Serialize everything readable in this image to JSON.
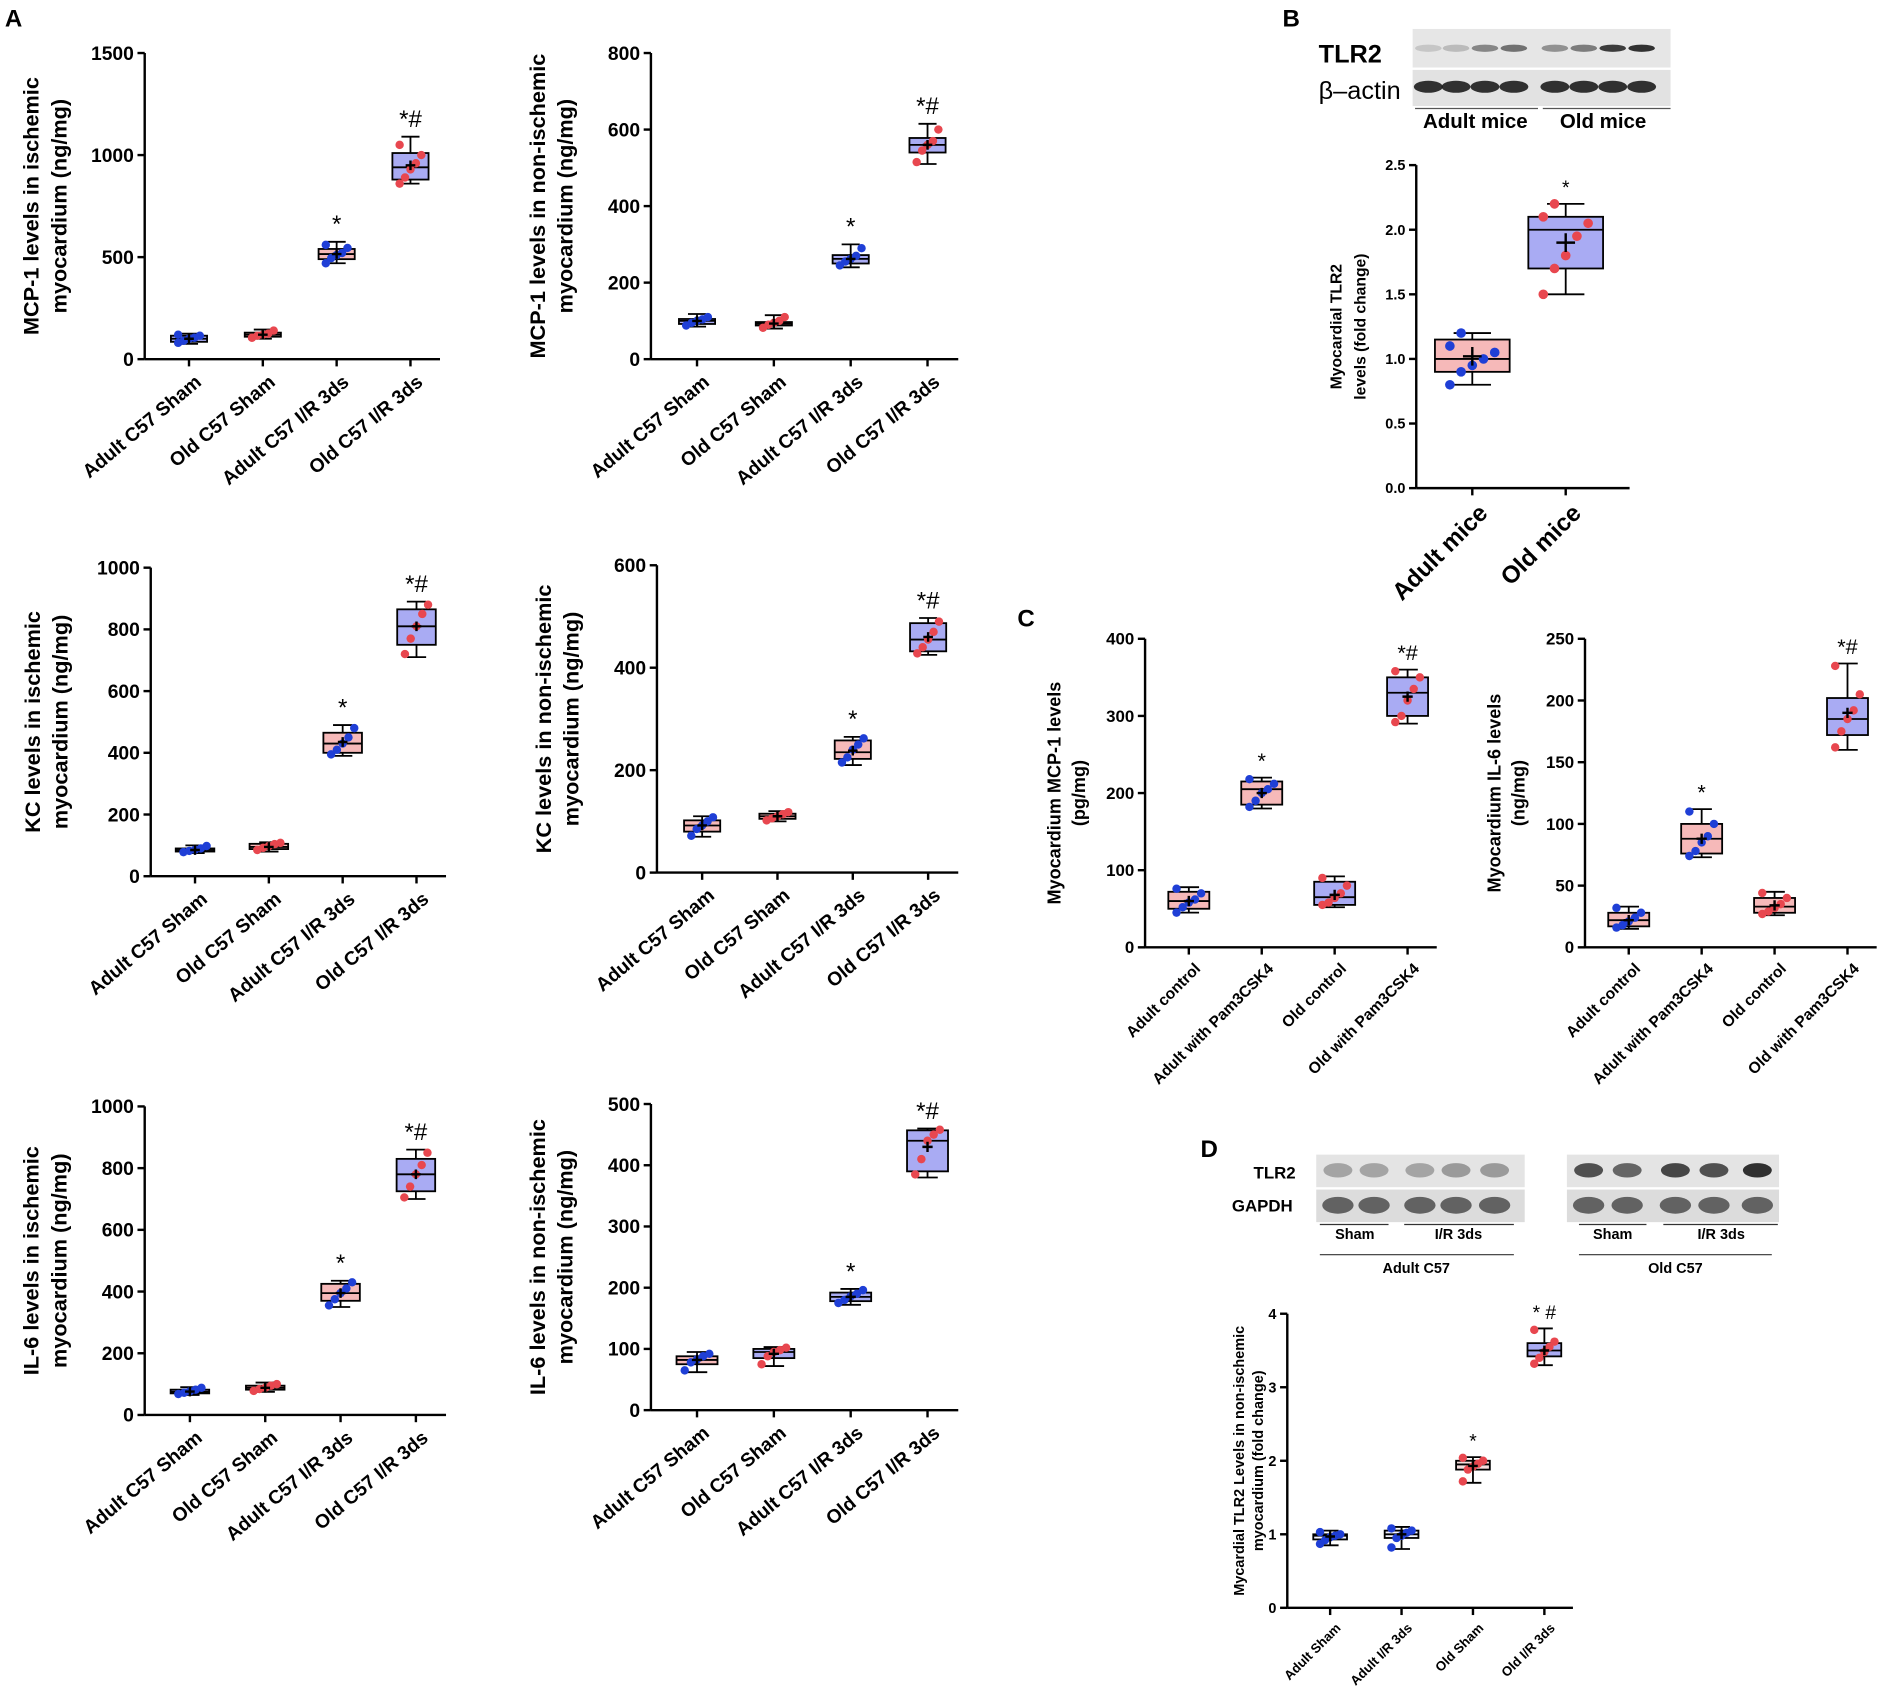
{
  "panels": [
    "A",
    "B",
    "C",
    "D"
  ],
  "blots": [
    {
      "rows": [
        "TLR2",
        "β–actin"
      ],
      "groups": [
        "Adult mice",
        "Old mice"
      ]
    },
    {
      "rows": [
        "TLR2",
        "GAPDH"
      ],
      "lanes": [
        "Sham",
        "I/R 3ds",
        "Sham",
        "I/R 3ds"
      ],
      "groups": [
        "Adult C57",
        "Old C57"
      ]
    }
  ],
  "chart_data": [
    {
      "type": "box",
      "ylabel": [
        "MCP-1 levels in ischemic",
        "myocardium (ng/mg)"
      ],
      "categories": [
        "Adult C57 Sham",
        "Old C57 Sham",
        "Adult C57 I/R 3ds",
        "Old C57 I/R 3ds"
      ],
      "ylim": [
        0,
        1500
      ],
      "yticks": [
        0,
        500,
        1000,
        1500
      ],
      "boxes": [
        {
          "min": 75,
          "q1": 85,
          "median": 100,
          "q3": 115,
          "max": 125,
          "mean": 100,
          "fill": "#a9abf3",
          "point_color": "#1f3fd6",
          "points": [
            80,
            90,
            100,
            105,
            115,
            120
          ]
        },
        {
          "min": 100,
          "q1": 110,
          "median": 120,
          "q3": 130,
          "max": 145,
          "mean": 120,
          "fill": "#f6b9b9",
          "point_color": "#e8474f",
          "points": [
            105,
            115,
            120,
            125,
            140
          ]
        },
        {
          "min": 470,
          "q1": 490,
          "median": 515,
          "q3": 540,
          "max": 575,
          "mean": 515,
          "fill": "#f6b9b9",
          "point_color": "#1f3fd6",
          "points": [
            470,
            495,
            510,
            520,
            545,
            560
          ],
          "annotation": "*"
        },
        {
          "min": 860,
          "q1": 880,
          "median": 940,
          "q3": 1010,
          "max": 1090,
          "mean": 950,
          "fill": "#a9abf3",
          "point_color": "#e8474f",
          "points": [
            860,
            890,
            930,
            960,
            1000,
            1050
          ],
          "annotation": "*#"
        }
      ]
    },
    {
      "type": "box",
      "ylabel": [
        "MCP-1 levels in non-ischemic",
        "myocardium (ng/mg)"
      ],
      "categories": [
        "Adult C57 Sham",
        "Old C57 Sham",
        "Adult C57 I/R 3ds",
        "Old C57 I/R 3ds"
      ],
      "ylim": [
        0,
        800
      ],
      "yticks": [
        0,
        200,
        400,
        600,
        800
      ],
      "boxes": [
        {
          "min": 85,
          "q1": 92,
          "median": 100,
          "q3": 105,
          "max": 118,
          "mean": 100,
          "fill": "#a9abf3",
          "point_color": "#1f3fd6",
          "points": [
            88,
            95,
            100,
            104,
            110
          ]
        },
        {
          "min": 80,
          "q1": 88,
          "median": 93,
          "q3": 97,
          "max": 115,
          "mean": 93,
          "fill": "#f6b9b9",
          "point_color": "#e8474f",
          "points": [
            82,
            90,
            95,
            100,
            110
          ]
        },
        {
          "min": 240,
          "q1": 250,
          "median": 262,
          "q3": 272,
          "max": 300,
          "mean": 262,
          "fill": "#a9abf3",
          "point_color": "#1f3fd6",
          "points": [
            245,
            255,
            262,
            270,
            290
          ],
          "annotation": "*"
        },
        {
          "min": 510,
          "q1": 540,
          "median": 560,
          "q3": 578,
          "max": 615,
          "mean": 560,
          "fill": "#a9abf3",
          "point_color": "#e8474f",
          "points": [
            515,
            545,
            560,
            570,
            600
          ],
          "annotation": "*#"
        }
      ]
    },
    {
      "type": "box",
      "ylabel": [
        "KC levels in ischemic",
        "myocardium (ng/mg)"
      ],
      "categories": [
        "Adult C57 Sham",
        "Old C57 Sham",
        "Adult C57 I/R 3ds",
        "Old C57 I/R 3ds"
      ],
      "ylim": [
        0,
        1000
      ],
      "yticks": [
        0,
        200,
        400,
        600,
        800,
        1000
      ],
      "boxes": [
        {
          "min": 75,
          "q1": 80,
          "median": 85,
          "q3": 90,
          "max": 100,
          "mean": 85,
          "fill": "#a9abf3",
          "point_color": "#1f3fd6",
          "points": [
            78,
            82,
            86,
            90,
            98
          ]
        },
        {
          "min": 80,
          "q1": 88,
          "median": 95,
          "q3": 105,
          "max": 110,
          "mean": 95,
          "fill": "#f6b9b9",
          "point_color": "#e8474f",
          "points": [
            85,
            92,
            98,
            104,
            108
          ]
        },
        {
          "min": 390,
          "q1": 400,
          "median": 430,
          "q3": 465,
          "max": 490,
          "mean": 435,
          "fill": "#f6b9b9",
          "point_color": "#1f3fd6",
          "points": [
            395,
            410,
            430,
            450,
            480
          ],
          "annotation": "*"
        },
        {
          "min": 710,
          "q1": 750,
          "median": 810,
          "q3": 865,
          "max": 890,
          "mean": 810,
          "fill": "#a9abf3",
          "point_color": "#e8474f",
          "points": [
            720,
            770,
            810,
            850,
            880
          ],
          "annotation": "*#"
        }
      ]
    },
    {
      "type": "box",
      "ylabel": [
        "KC levels in non-ischemic",
        "myocardium (ng/mg)"
      ],
      "categories": [
        "Adult C57 Sham",
        "Old C57 Sham",
        "Adult C57 I/R 3ds",
        "Old C57 I/R 3ds"
      ],
      "ylim": [
        0,
        600
      ],
      "yticks": [
        0,
        200,
        400,
        600
      ],
      "boxes": [
        {
          "min": 70,
          "q1": 80,
          "median": 92,
          "q3": 102,
          "max": 110,
          "mean": 92,
          "fill": "#f6b9b9",
          "point_color": "#1f3fd6",
          "points": [
            72,
            85,
            92,
            100,
            108
          ]
        },
        {
          "min": 100,
          "q1": 105,
          "median": 110,
          "q3": 115,
          "max": 120,
          "mean": 110,
          "fill": "#f6b9b9",
          "point_color": "#e8474f",
          "points": [
            102,
            106,
            110,
            114,
            118
          ]
        },
        {
          "min": 210,
          "q1": 222,
          "median": 235,
          "q3": 258,
          "max": 265,
          "mean": 238,
          "fill": "#f6b9b9",
          "point_color": "#1f3fd6",
          "points": [
            215,
            225,
            240,
            250,
            262
          ],
          "annotation": "*"
        },
        {
          "min": 425,
          "q1": 432,
          "median": 455,
          "q3": 487,
          "max": 497,
          "mean": 460,
          "fill": "#a9abf3",
          "point_color": "#e8474f",
          "points": [
            428,
            440,
            455,
            470,
            490
          ],
          "annotation": "*#"
        }
      ]
    },
    {
      "type": "box",
      "ylabel": [
        "IL-6 levels in ischemic",
        "myocardium (ng/mg)"
      ],
      "categories": [
        "Adult C57 Sham",
        "Old C57 Sham",
        "Adult C57 I/R 3ds",
        "Old C57 I/R 3ds"
      ],
      "ylim": [
        0,
        1000
      ],
      "yticks": [
        0,
        200,
        400,
        600,
        800,
        1000
      ],
      "boxes": [
        {
          "min": 65,
          "q1": 70,
          "median": 75,
          "q3": 82,
          "max": 90,
          "mean": 76,
          "fill": "#a9abf3",
          "point_color": "#1f3fd6",
          "points": [
            68,
            72,
            77,
            82,
            88
          ]
        },
        {
          "min": 75,
          "q1": 82,
          "median": 88,
          "q3": 95,
          "max": 105,
          "mean": 88,
          "fill": "#f6b9b9",
          "point_color": "#e8474f",
          "points": [
            78,
            84,
            88,
            95,
            100
          ]
        },
        {
          "min": 350,
          "q1": 370,
          "median": 395,
          "q3": 425,
          "max": 435,
          "mean": 395,
          "fill": "#f6b9b9",
          "point_color": "#1f3fd6",
          "points": [
            355,
            375,
            395,
            410,
            430
          ],
          "annotation": "*"
        },
        {
          "min": 700,
          "q1": 725,
          "median": 780,
          "q3": 830,
          "max": 860,
          "mean": 780,
          "fill": "#a9abf3",
          "point_color": "#e8474f",
          "points": [
            705,
            740,
            780,
            810,
            850
          ],
          "annotation": "*#"
        }
      ]
    },
    {
      "type": "box",
      "ylabel": [
        "IL-6 levels in non-ischemic",
        "myocardium (ng/mg)"
      ],
      "categories": [
        "Adult C57 Sham",
        "Old C57 Sham",
        "Adult C57 I/R 3ds",
        "Old C57 I/R 3ds"
      ],
      "ylim": [
        0,
        500
      ],
      "yticks": [
        0,
        100,
        200,
        300,
        400,
        500
      ],
      "boxes": [
        {
          "min": 62,
          "q1": 75,
          "median": 82,
          "q3": 88,
          "max": 95,
          "mean": 82,
          "fill": "#f6b9b9",
          "point_color": "#1f3fd6",
          "points": [
            65,
            78,
            83,
            88,
            92
          ]
        },
        {
          "min": 72,
          "q1": 85,
          "median": 95,
          "q3": 100,
          "max": 103,
          "mean": 92,
          "fill": "#a9abf3",
          "point_color": "#e8474f",
          "points": [
            75,
            88,
            95,
            98,
            102
          ]
        },
        {
          "min": 172,
          "q1": 178,
          "median": 185,
          "q3": 192,
          "max": 198,
          "mean": 185,
          "fill": "#a9abf3",
          "point_color": "#1f3fd6",
          "points": [
            175,
            180,
            186,
            190,
            196
          ],
          "annotation": "*"
        },
        {
          "min": 380,
          "q1": 390,
          "median": 440,
          "q3": 457,
          "max": 460,
          "mean": 430,
          "fill": "#a9abf3",
          "point_color": "#e8474f",
          "points": [
            385,
            410,
            440,
            450,
            458
          ],
          "annotation": "*#"
        }
      ]
    },
    {
      "type": "box",
      "ylabel": [
        "Myocardial TLR2",
        "levels (fold change)"
      ],
      "categories": [
        "Adult mice",
        "Old mice"
      ],
      "ylim": [
        0,
        2.5
      ],
      "yticks": [
        {
          "value": 0,
          "label": "0.0"
        },
        0.5,
        {
          "value": 1,
          "label": "1.0"
        },
        1.5,
        {
          "value": 2,
          "label": "2.0"
        },
        2.5
      ],
      "boxes": [
        {
          "min": 0.8,
          "q1": 0.9,
          "median": 1.0,
          "q3": 1.15,
          "max": 1.2,
          "mean": 1.02,
          "fill": "#f6b9b9",
          "point_color": "#1f3fd6",
          "points": [
            0.8,
            0.9,
            0.95,
            1.0,
            1.05,
            1.1,
            1.2
          ]
        },
        {
          "min": 1.5,
          "q1": 1.7,
          "median": 2.0,
          "q3": 2.1,
          "max": 2.2,
          "mean": 1.9,
          "fill": "#a9abf3",
          "point_color": "#e8474f",
          "points": [
            1.5,
            1.7,
            1.8,
            1.95,
            2.05,
            2.1,
            2.2
          ],
          "annotation": "*"
        }
      ]
    },
    {
      "type": "box",
      "ylabel": [
        "Myocardium MCP-1 levels",
        "(pg/mg)"
      ],
      "categories": [
        "Adult control",
        "Adult with Pam3CSK4",
        "Old control",
        "Old with Pam3CSK4"
      ],
      "ylim": [
        0,
        400
      ],
      "yticks": [
        0,
        100,
        200,
        300,
        400
      ],
      "boxes": [
        {
          "min": 45,
          "q1": 50,
          "median": 60,
          "q3": 72,
          "max": 78,
          "mean": 60,
          "fill": "#f6b9b9",
          "point_color": "#1f3fd6",
          "points": [
            45,
            52,
            58,
            62,
            70,
            76
          ]
        },
        {
          "min": 180,
          "q1": 185,
          "median": 205,
          "q3": 215,
          "max": 220,
          "mean": 200,
          "fill": "#f6b9b9",
          "point_color": "#1f3fd6",
          "points": [
            182,
            190,
            200,
            205,
            212,
            218
          ],
          "annotation": "*"
        },
        {
          "min": 52,
          "q1": 55,
          "median": 65,
          "q3": 85,
          "max": 92,
          "mean": 68,
          "fill": "#a9abf3",
          "point_color": "#e8474f",
          "points": [
            55,
            58,
            64,
            70,
            80,
            90
          ]
        },
        {
          "min": 290,
          "q1": 300,
          "median": 330,
          "q3": 350,
          "max": 360,
          "mean": 325,
          "fill": "#a9abf3",
          "point_color": "#e8474f",
          "points": [
            292,
            300,
            320,
            335,
            350,
            358
          ],
          "annotation": "*#"
        }
      ]
    },
    {
      "type": "box",
      "ylabel": [
        "Myocardium IL-6 levels",
        "(ng/mg)"
      ],
      "categories": [
        "Adult control",
        "Adult with Pam3CSK4",
        "Old control",
        "Old with Pam3CSK4"
      ],
      "ylim": [
        0,
        250
      ],
      "yticks": [
        0,
        50,
        100,
        150,
        200,
        250
      ],
      "boxes": [
        {
          "min": 15,
          "q1": 17,
          "median": 22,
          "q3": 28,
          "max": 33,
          "mean": 22,
          "fill": "#f6b9b9",
          "point_color": "#1f3fd6",
          "points": [
            16,
            18,
            21,
            24,
            28,
            32
          ]
        },
        {
          "min": 73,
          "q1": 76,
          "median": 88,
          "q3": 100,
          "max": 112,
          "mean": 88,
          "fill": "#f6b9b9",
          "point_color": "#1f3fd6",
          "points": [
            74,
            78,
            85,
            90,
            100,
            110
          ],
          "annotation": "*"
        },
        {
          "min": 26,
          "q1": 28,
          "median": 33,
          "q3": 40,
          "max": 45,
          "mean": 34,
          "fill": "#f6b9b9",
          "point_color": "#e8474f",
          "points": [
            27,
            29,
            32,
            35,
            40,
            44
          ]
        },
        {
          "min": 160,
          "q1": 172,
          "median": 185,
          "q3": 202,
          "max": 230,
          "mean": 190,
          "fill": "#a9abf3",
          "point_color": "#e8474f",
          "points": [
            162,
            175,
            185,
            192,
            205,
            228
          ],
          "annotation": "*#"
        }
      ]
    },
    {
      "type": "box",
      "ylabel": [
        "Mycardial TLR2 Levels in non-ischemic",
        "myocardium (fold change)"
      ],
      "categories": [
        "Adult Sham",
        "Adult I/R 3ds",
        "Old Sham",
        "Old I/R 3ds"
      ],
      "ylim": [
        0,
        4
      ],
      "yticks": [
        0,
        1,
        2,
        3,
        4
      ],
      "boxes": [
        {
          "min": 0.85,
          "q1": 0.93,
          "median": 0.98,
          "q3": 1.0,
          "max": 1.05,
          "mean": 0.97,
          "fill": "#f3f3ff",
          "point_color": "#1f3fd6",
          "points": [
            0.87,
            0.92,
            0.96,
            0.98,
            1.0,
            1.03
          ]
        },
        {
          "min": 0.8,
          "q1": 0.95,
          "median": 1.0,
          "q3": 1.05,
          "max": 1.1,
          "mean": 1.0,
          "fill": "#f3f3ff",
          "point_color": "#1f3fd6",
          "points": [
            0.82,
            0.95,
            0.98,
            1.02,
            1.05,
            1.08
          ]
        },
        {
          "min": 1.7,
          "q1": 1.88,
          "median": 1.95,
          "q3": 2.0,
          "max": 2.05,
          "mean": 1.93,
          "fill": "#f6dede",
          "point_color": "#e8474f",
          "points": [
            1.72,
            1.88,
            1.92,
            1.96,
            2.0,
            2.04
          ],
          "annotation": "*"
        },
        {
          "min": 3.3,
          "q1": 3.42,
          "median": 3.5,
          "q3": 3.6,
          "max": 3.8,
          "mean": 3.5,
          "fill": "#a9abf3",
          "point_color": "#e8474f",
          "points": [
            3.32,
            3.4,
            3.48,
            3.55,
            3.62,
            3.78
          ],
          "annotation": "* #"
        }
      ]
    }
  ]
}
